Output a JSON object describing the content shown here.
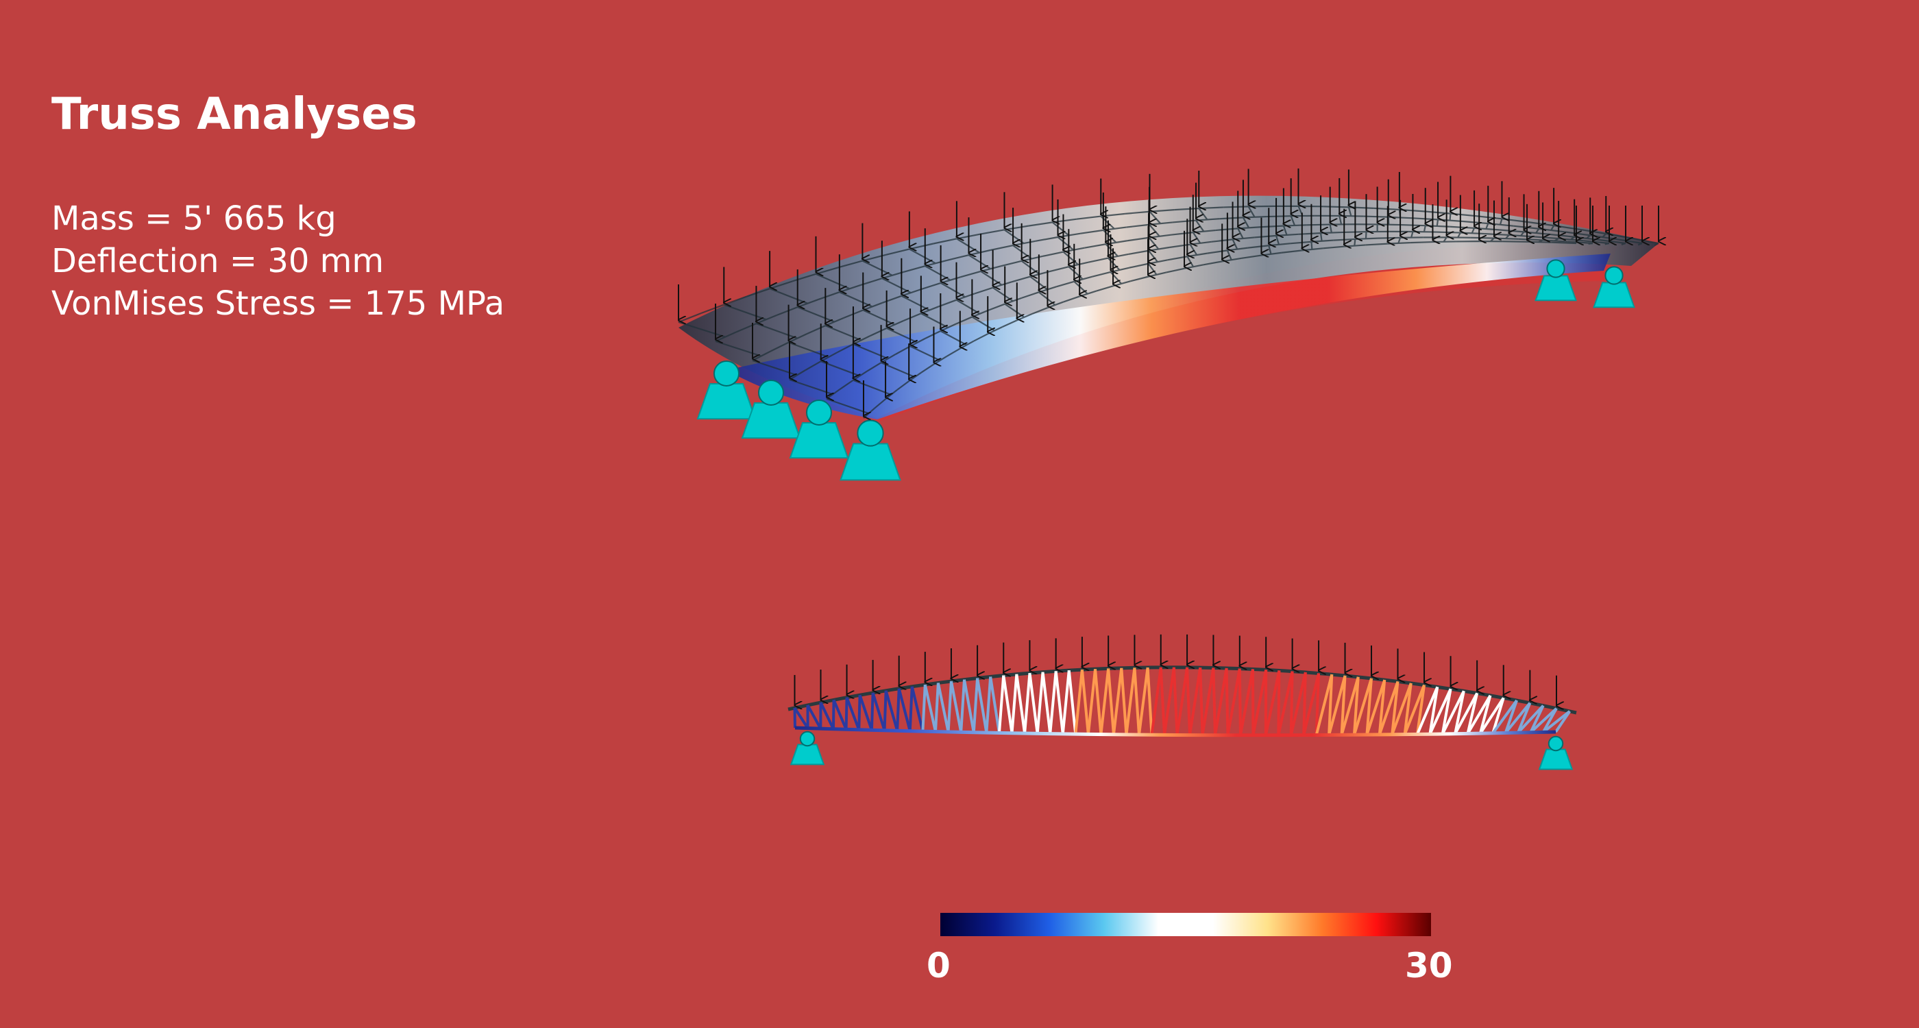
{
  "title": "Truss Analyses",
  "stats": {
    "mass": "Mass = 5' 665 kg",
    "deflection": "Deflection = 30 mm",
    "stress": "VonMises Stress = 175 MPa"
  },
  "colorbar": {
    "min_label": "0",
    "max_label": "30",
    "stops": [
      "#000033",
      "#0a1a8c",
      "#1f5fe6",
      "#5ac8f0",
      "#ffffff",
      "#ffffff",
      "#ffe28a",
      "#ff7a2a",
      "#ff1010",
      "#5a0000"
    ]
  },
  "colors": {
    "background": "#bf4040",
    "support": "#00cccc",
    "load_arrow": "#111111",
    "truss_top": "#2a3a3e"
  }
}
